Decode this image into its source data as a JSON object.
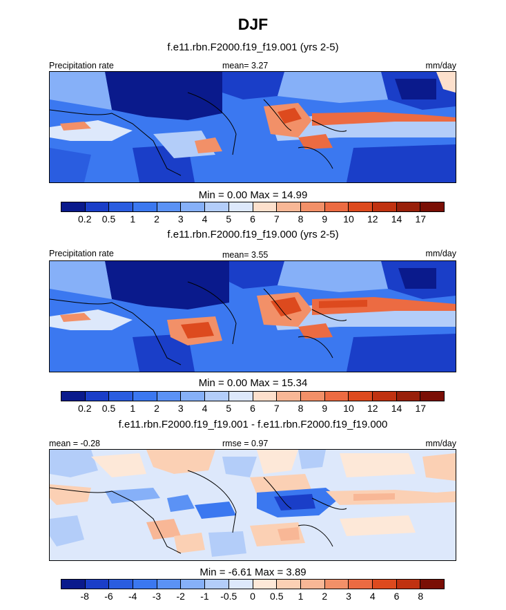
{
  "title": "DJF",
  "precip_scale": {
    "colors": [
      "#0a1a8c",
      "#1a3ec8",
      "#2a5de0",
      "#3b78f0",
      "#5b92f5",
      "#86b0f8",
      "#b3cdf9",
      "#dde8fb",
      "#fde0cc",
      "#f8b796",
      "#f29068",
      "#ec6b42",
      "#dd4a1e",
      "#c03210",
      "#98200a",
      "#7a0f05"
    ],
    "labels": [
      "0.2",
      "0.5",
      "1",
      "2",
      "3",
      "4",
      "5",
      "6",
      "7",
      "8",
      "9",
      "10",
      "12",
      "14",
      "17"
    ]
  },
  "diff_scale": {
    "colors": [
      "#0a1a8c",
      "#1a3ec8",
      "#2a5de0",
      "#3b78f0",
      "#5b92f5",
      "#86b0f8",
      "#b3cdf9",
      "#dde8fb",
      "#fde8d8",
      "#fbd0b4",
      "#f8b796",
      "#f29068",
      "#ec6b42",
      "#dd4a1e",
      "#c03210",
      "#7a0f05"
    ],
    "labels": [
      "-8",
      "-6",
      "-4",
      "-3",
      "-2",
      "-1",
      "-0.5",
      "0",
      "0.5",
      "1",
      "2",
      "3",
      "4",
      "6",
      "8"
    ]
  },
  "panels": [
    {
      "subtitle": "f.e11.rbn.F2000.f19_f19.001 (yrs 2-5)",
      "left_label": "Precipitation rate",
      "center_label": "mean=   3.27",
      "right_label": "mm/day",
      "minmax": "Min =   0.00 Max =  14.99"
    },
    {
      "subtitle": "f.e11.rbn.F2000.f19_f19.000 (yrs 2-5)",
      "left_label": "Precipitation rate",
      "center_label": "mean=   3.55",
      "right_label": "mm/day",
      "minmax": "Min =   0.00 Max =  15.34"
    },
    {
      "subtitle": "f.e11.rbn.F2000.f19_f19.001 - f.e11.rbn.F2000.f19_f19.000",
      "left_label": "mean =  -0.28",
      "center_label": "rmse =   0.97",
      "right_label": "mm/day",
      "minmax": "Min =  -6.61 Max =   3.89"
    }
  ],
  "chart_data": [
    {
      "type": "heatmap",
      "title": "DJF",
      "subtitle": "f.e11.rbn.F2000.f19_f19.001 (yrs 2-5)",
      "variable": "Precipitation rate",
      "units": "mm/day",
      "mean": 3.27,
      "min": 0.0,
      "max": 14.99,
      "contour_levels": [
        0.2,
        0.5,
        1,
        2,
        3,
        4,
        5,
        6,
        7,
        8,
        9,
        10,
        12,
        14,
        17
      ]
    },
    {
      "type": "heatmap",
      "subtitle": "f.e11.rbn.F2000.f19_f19.000 (yrs 2-5)",
      "variable": "Precipitation rate",
      "units": "mm/day",
      "mean": 3.55,
      "min": 0.0,
      "max": 15.34,
      "contour_levels": [
        0.2,
        0.5,
        1,
        2,
        3,
        4,
        5,
        6,
        7,
        8,
        9,
        10,
        12,
        14,
        17
      ]
    },
    {
      "type": "heatmap",
      "subtitle": "f.e11.rbn.F2000.f19_f19.001 - f.e11.rbn.F2000.f19_f19.000",
      "units": "mm/day",
      "mean": -0.28,
      "rmse": 0.97,
      "min": -6.61,
      "max": 3.89,
      "contour_levels": [
        -8,
        -6,
        -4,
        -3,
        -2,
        -1,
        -0.5,
        0,
        0.5,
        1,
        2,
        3,
        4,
        6,
        8
      ]
    }
  ]
}
